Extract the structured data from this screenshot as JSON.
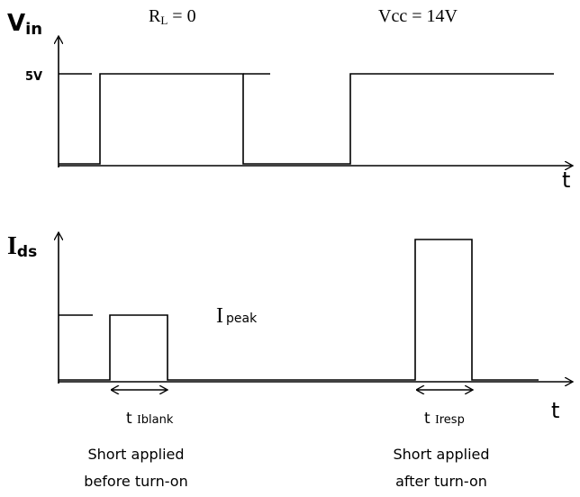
{
  "labels": {
    "vin": {
      "main": "V",
      "sub": "in"
    },
    "rl": {
      "main": "R",
      "sub": "L",
      "rest": " = 0"
    },
    "vcc": "Vcc = 14V",
    "level": "5V",
    "t_top": "t",
    "ids": {
      "main": "I",
      "sub": "ds"
    },
    "ipeak": {
      "main": "I",
      "sub": "peak"
    },
    "t_bottom": "t",
    "tblank": {
      "main": "t ",
      "sym": "I",
      "sub": "blank"
    },
    "tresp": {
      "main": "t ",
      "sym": "I",
      "sub": "resp"
    }
  },
  "notes": [
    {
      "line1": "Short applied",
      "line2": "before turn-on"
    },
    {
      "line1": "Short applied",
      "line2": "after turn-on"
    }
  ]
}
